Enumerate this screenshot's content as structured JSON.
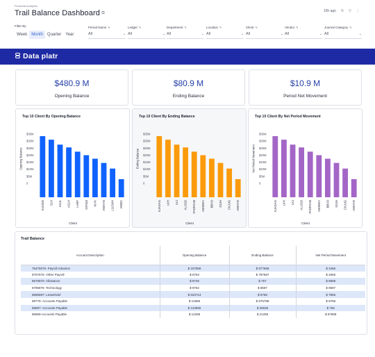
{
  "header": {
    "breadcrumb": "Financial Analytics",
    "title": "Trail Balance Dashboard",
    "last_updated": "10h ago"
  },
  "filters": {
    "filter_by_label": "Filter By",
    "periods": [
      "Week",
      "Month",
      "Quarter",
      "Year"
    ],
    "active_period": "Month",
    "fields": [
      {
        "label": "Period Name",
        "value": "All"
      },
      {
        "label": "Ledger",
        "value": "All"
      },
      {
        "label": "Department",
        "value": "All"
      },
      {
        "label": "Location",
        "value": "All"
      },
      {
        "label": "Client",
        "value": "All"
      },
      {
        "label": "Vendor",
        "value": "All"
      },
      {
        "label": "Journal Category",
        "value": "All"
      }
    ]
  },
  "brand": {
    "name": "Data platr",
    "color": "#1e2aa3"
  },
  "kpis": [
    {
      "value": "$480.9 M",
      "label": "Opening Balance"
    },
    {
      "value": "$80.9 M",
      "label": "Ending Balance"
    },
    {
      "value": "$10.9 M",
      "label": "Period Net Movement"
    }
  ],
  "chart_data": [
    {
      "type": "bar",
      "title": "Top 10 Client By Opening Balance",
      "xlabel": "Client",
      "ylabel": "Opening Balance",
      "color": "#0f62fe",
      "yticks": [
        "$35M",
        "$30M",
        "$25M",
        "$20M",
        "$15M",
        "$10M",
        "$5M",
        "0"
      ],
      "ylim": [
        0,
        35
      ],
      "categories": [
        "KUUGD",
        "SLH",
        "AUJL",
        "ASLH",
        "LHKF",
        "GFAD3",
        "KIYK",
        "AWHYD",
        "LGCWH",
        "AWBC"
      ],
      "values": [
        33.5,
        31,
        27.5,
        25.5,
        22.5,
        20,
        17.5,
        14.5,
        10.5,
        3
      ]
    },
    {
      "type": "bar",
      "title": "Top 10 Client By Ending Balance",
      "xlabel": "Client",
      "ylabel": "Ending Balance",
      "color": "#fb9b0b",
      "yticks": [
        "$35M",
        "$30M",
        "$25M",
        "$20M",
        "$15M",
        "$10M",
        "$5M",
        "0"
      ],
      "ylim": [
        0,
        35
      ],
      "categories": [
        "KJAGAG",
        "LKH",
        "LKJ",
        "ALUGD",
        "FADFGVB",
        "AWMWV",
        "BBVD",
        "SSJH",
        "CKJUG",
        "AWHYD"
      ],
      "values": [
        33.5,
        31,
        27.5,
        25.5,
        22.5,
        20,
        17.5,
        14.5,
        10.5,
        3
      ]
    },
    {
      "type": "bar",
      "title": "Top 10 Client By Net Period Movement",
      "xlabel": "Client",
      "ylabel": "Net Period Movement",
      "color": "#a366c6",
      "yticks": [
        "$35M",
        "$30M",
        "$25M",
        "$20M",
        "$15M",
        "$10M",
        "$5M",
        "0"
      ],
      "ylim": [
        0,
        35
      ],
      "categories": [
        "KJAGAG",
        "LKH",
        "LKJ",
        "ALUGD",
        "FADFGVB",
        "AWMWV",
        "BBVD",
        "SSJH",
        "CKJUG",
        "AWHYD"
      ],
      "values": [
        33.5,
        31,
        27.5,
        25.5,
        22.5,
        20,
        17.5,
        14.5,
        10.5,
        3
      ]
    }
  ],
  "table": {
    "title": "Trail Balance",
    "columns": [
      "Account Description",
      "Opening Balance",
      "Ending Balance",
      "Net Period Movement"
    ],
    "rows": [
      [
        "76476576- Payroll Advance",
        "$ 157858",
        "$ 877568",
        "$ 3455"
      ],
      [
        "8757676- Other Payroll",
        "$ 6753",
        "$ 787687",
        "$ 2566"
      ],
      [
        "8576870- Allowance",
        "$ 9746",
        "$ 757",
        "$ 8668"
      ],
      [
        "8796876- Technology",
        "$ 9762",
        "$ 8697",
        "$ 8697"
      ],
      [
        "8685587- Leasehold",
        "$ 633713",
        "$ 8758",
        "$ 7856"
      ],
      [
        "88779- Accounts Payable",
        "$ 12585",
        "$ 875788",
        "$ 8768"
      ],
      [
        "86897- Accounts Payable",
        "$ 123555",
        "$ 25635",
        "$ 765"
      ],
      [
        "86859-Accounts Payable",
        "$ 12258",
        "$ 21258",
        "$ 87868"
      ]
    ]
  }
}
